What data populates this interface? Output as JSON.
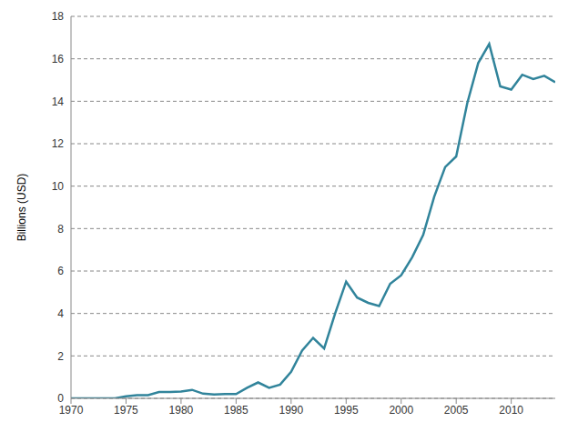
{
  "chart_data": {
    "type": "line",
    "y_label": "Billions (USD)",
    "x": [
      1970,
      1971,
      1972,
      1973,
      1974,
      1975,
      1976,
      1977,
      1978,
      1979,
      1980,
      1981,
      1982,
      1983,
      1984,
      1985,
      1986,
      1987,
      1988,
      1989,
      1990,
      1991,
      1992,
      1993,
      1994,
      1995,
      1996,
      1997,
      1998,
      1999,
      2000,
      2001,
      2002,
      2003,
      2004,
      2005,
      2006,
      2007,
      2008,
      2009,
      2010,
      2011,
      2012,
      2013,
      2014
    ],
    "values": [
      0,
      0,
      0,
      0,
      0,
      0.1,
      0.15,
      0.15,
      0.3,
      0.3,
      0.32,
      0.4,
      0.22,
      0.18,
      0.2,
      0.2,
      0.5,
      0.75,
      0.5,
      0.65,
      1.25,
      2.25,
      2.85,
      2.35,
      4.0,
      5.5,
      4.75,
      4.5,
      4.35,
      5.4,
      5.8,
      6.65,
      7.7,
      9.5,
      10.9,
      11.4,
      13.9,
      15.8,
      16.7,
      14.7,
      14.55,
      15.25,
      15.05,
      15.2,
      14.9
    ],
    "color": "#31849b",
    "xlim": [
      1970,
      2014
    ],
    "xticks": [
      1970,
      1975,
      1980,
      1985,
      1990,
      1995,
      2000,
      2005,
      2010
    ],
    "ylim": [
      0,
      18
    ],
    "yticks": [
      0,
      2,
      4,
      6,
      8,
      10,
      12,
      14,
      16,
      18
    ],
    "grid": true
  }
}
